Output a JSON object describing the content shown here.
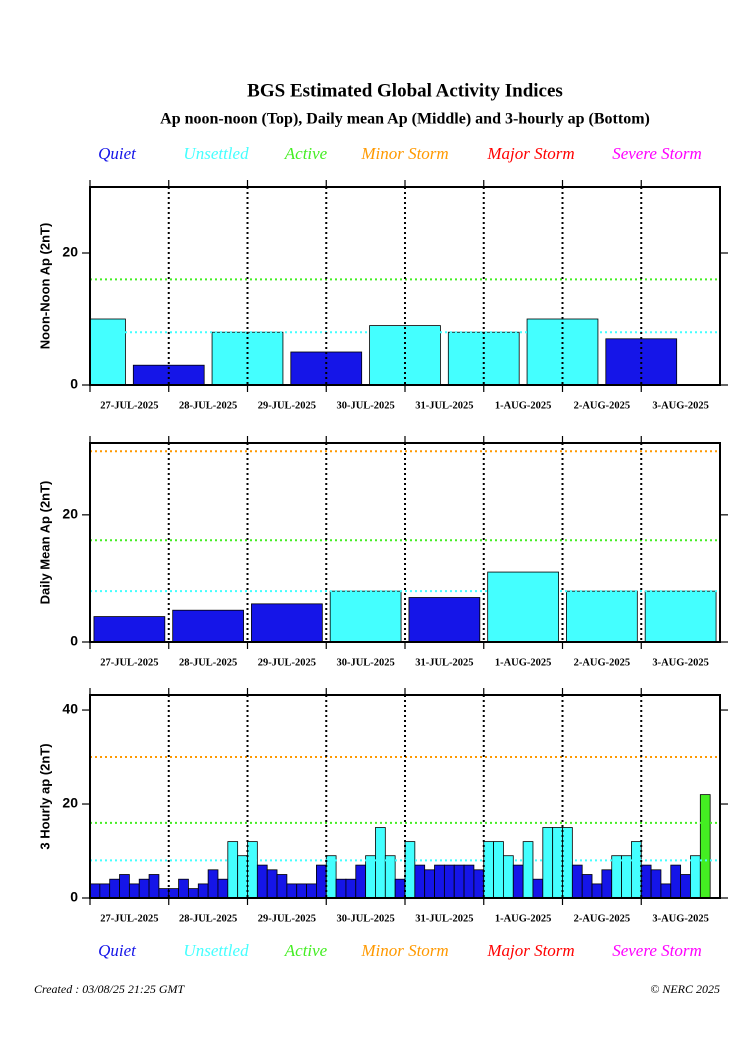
{
  "title": "BGS Estimated Global Activity Indices",
  "subtitle": "Ap noon-noon (Top), Daily mean Ap (Middle) and 3-hourly ap (Bottom)",
  "legend": [
    {
      "name": "Quiet",
      "color": "#1515e8"
    },
    {
      "name": "Unsettled",
      "color": "#44ffff"
    },
    {
      "name": "Active",
      "color": "#44ee22"
    },
    {
      "name": "Minor Storm",
      "color": "#ff9900"
    },
    {
      "name": "Major Storm",
      "color": "#ff0000"
    },
    {
      "name": "Severe Storm",
      "color": "#ff00ff"
    }
  ],
  "created": "Created : 03/08/25 21:25 GMT",
  "copyright": "© NERC 2025",
  "chart_data": [
    {
      "type": "bar",
      "bar_align": "edge",
      "ylabel": "Noon-Noon Ap (2nT)",
      "categories": [
        "27-JUL-2025",
        "28-JUL-2025",
        "29-JUL-2025",
        "30-JUL-2025",
        "31-JUL-2025",
        "1-AUG-2025",
        "2-AUG-2025",
        "3-AUG-2025"
      ],
      "values": [
        10,
        3,
        8,
        5,
        9,
        8,
        10,
        7
      ],
      "ylim": [
        0,
        30
      ],
      "yticks": [
        0,
        20
      ],
      "reference_lines": [
        {
          "value": 8,
          "color": "#44ffff"
        },
        {
          "value": 16,
          "color": "#44ee22"
        }
      ]
    },
    {
      "type": "bar",
      "bar_align": "center",
      "ylabel": "Daily Mean Ap (2nT)",
      "categories": [
        "27-JUL-2025",
        "28-JUL-2025",
        "29-JUL-2025",
        "30-JUL-2025",
        "31-JUL-2025",
        "1-AUG-2025",
        "2-AUG-2025",
        "3-AUG-2025"
      ],
      "values": [
        4,
        5,
        6,
        8,
        7,
        11,
        8,
        8
      ],
      "ylim": [
        0,
        31.3
      ],
      "yticks": [
        0,
        20
      ],
      "reference_lines": [
        {
          "value": 8,
          "color": "#44ffff"
        },
        {
          "value": 16,
          "color": "#44ee22"
        },
        {
          "value": 30,
          "color": "#ff9900"
        }
      ]
    },
    {
      "type": "bar",
      "bar_align": "center",
      "ylabel": "3 Hourly ap (2nT)",
      "categories": [
        "27-JUL-2025",
        null,
        null,
        null,
        null,
        null,
        null,
        null,
        "28-JUL-2025",
        null,
        null,
        null,
        null,
        null,
        null,
        null,
        "29-JUL-2025",
        null,
        null,
        null,
        null,
        null,
        null,
        null,
        "30-JUL-2025",
        null,
        null,
        null,
        null,
        null,
        null,
        null,
        "31-JUL-2025",
        null,
        null,
        null,
        null,
        null,
        null,
        null,
        "1-AUG-2025",
        null,
        null,
        null,
        null,
        null,
        null,
        null,
        "2-AUG-2025",
        null,
        null,
        null,
        null,
        null,
        null,
        null,
        "3-AUG-2025",
        null,
        null,
        null,
        null,
        null,
        null,
        null
      ],
      "values": [
        3,
        3,
        4,
        5,
        3,
        4,
        5,
        2,
        2,
        4,
        2,
        3,
        6,
        4,
        12,
        9,
        12,
        7,
        6,
        5,
        3,
        3,
        3,
        7,
        9,
        4,
        4,
        7,
        9,
        15,
        9,
        4,
        12,
        7,
        6,
        7,
        7,
        7,
        7,
        6,
        12,
        12,
        9,
        7,
        12,
        4,
        15,
        15,
        15,
        7,
        5,
        3,
        6,
        9,
        9,
        12,
        7,
        6,
        3,
        7,
        5,
        9,
        22,
        null
      ],
      "ylim": [
        0,
        43.2
      ],
      "yticks": [
        0,
        20,
        40
      ],
      "reference_lines": [
        {
          "value": 8,
          "color": "#44ffff"
        },
        {
          "value": 16,
          "color": "#44ee22"
        },
        {
          "value": 30,
          "color": "#ff9900"
        }
      ]
    }
  ]
}
